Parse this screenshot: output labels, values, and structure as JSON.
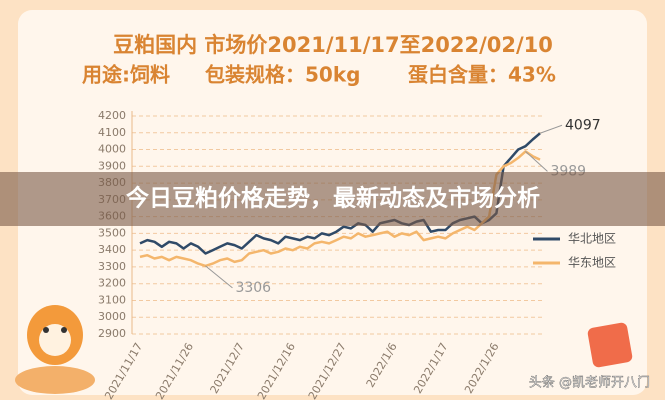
{
  "chart_data": {
    "type": "line",
    "title": "豆粕国内 市场价2021/11/17至2022/02/10",
    "subtitle": [
      "用途:饲料",
      "包装规格：50kg",
      "蛋白含量：43%"
    ],
    "banner": "今日豆粕价格走势，最新动态及市场分析",
    "watermark": "头条 @凯老师开八门",
    "categories": [
      "2021/11/17",
      null,
      null,
      null,
      null,
      null,
      null,
      "2021/11/26",
      null,
      null,
      null,
      null,
      null,
      null,
      "2021/12/7",
      null,
      null,
      null,
      null,
      null,
      null,
      "2021/12/16",
      null,
      null,
      null,
      null,
      null,
      null,
      "2021/12/27",
      null,
      null,
      null,
      null,
      null,
      null,
      "2022/1/6",
      null,
      null,
      null,
      null,
      null,
      null,
      "2022/1/17",
      null,
      null,
      null,
      null,
      null,
      null,
      "2022/1/26",
      null,
      null,
      null,
      null,
      null,
      null
    ],
    "series": [
      {
        "name": "华北地区",
        "color": "#2f4a68",
        "values": [
          3440,
          3460,
          3450,
          3420,
          3450,
          3440,
          3410,
          3440,
          3420,
          3380,
          3400,
          3420,
          3440,
          3430,
          3410,
          3450,
          3490,
          3470,
          3460,
          3440,
          3480,
          3470,
          3460,
          3480,
          3470,
          3500,
          3490,
          3510,
          3540,
          3530,
          3560,
          3550,
          3510,
          3560,
          3570,
          3580,
          3560,
          3550,
          3570,
          3580,
          3510,
          3520,
          3520,
          3560,
          3580,
          3590,
          3600,
          3560,
          3580,
          3620,
          3900,
          3950,
          4000,
          4020,
          4060,
          4097
        ],
        "value_labels": [
          null,
          null,
          null,
          null,
          null,
          null,
          null,
          null,
          null,
          null,
          null,
          null,
          null,
          null,
          null,
          null,
          null,
          null,
          null,
          null,
          null,
          null,
          null,
          null,
          null,
          null,
          null,
          null,
          null,
          null,
          null,
          null,
          null,
          null,
          null,
          null,
          null,
          null,
          null,
          null,
          null,
          null,
          null,
          null,
          null,
          null,
          null,
          null,
          null,
          null,
          null,
          null,
          null,
          null,
          null,
          "4097"
        ]
      },
      {
        "name": "华东地区",
        "color": "#f4b66c",
        "values": [
          3360,
          3370,
          3350,
          3360,
          3340,
          3360,
          3350,
          3340,
          3320,
          3306,
          3320,
          3340,
          3350,
          3330,
          3340,
          3380,
          3390,
          3400,
          3380,
          3390,
          3410,
          3400,
          3420,
          3410,
          3440,
          3450,
          3440,
          3460,
          3480,
          3470,
          3500,
          3480,
          3490,
          3500,
          3510,
          3480,
          3500,
          3490,
          3510,
          3460,
          3470,
          3480,
          3470,
          3500,
          3520,
          3540,
          3520,
          3560,
          3600,
          3850,
          3900,
          3920,
          3950,
          3989,
          3960,
          3940
        ],
        "value_labels": [
          null,
          null,
          null,
          null,
          null,
          null,
          null,
          null,
          null,
          "3306",
          null,
          null,
          null,
          null,
          null,
          null,
          null,
          null,
          null,
          null,
          null,
          null,
          null,
          null,
          null,
          null,
          null,
          null,
          null,
          null,
          null,
          null,
          null,
          null,
          null,
          null,
          null,
          null,
          null,
          null,
          null,
          null,
          null,
          null,
          null,
          null,
          null,
          null,
          null,
          null,
          null,
          null,
          null,
          "3989",
          null,
          null
        ]
      }
    ],
    "ylim": [
      2900,
      4200
    ],
    "yticks": [
      2900,
      3000,
      3100,
      3200,
      3300,
      3400,
      3500,
      3600,
      3700,
      3800,
      3900,
      4000,
      4100,
      4200
    ],
    "grid": true
  }
}
